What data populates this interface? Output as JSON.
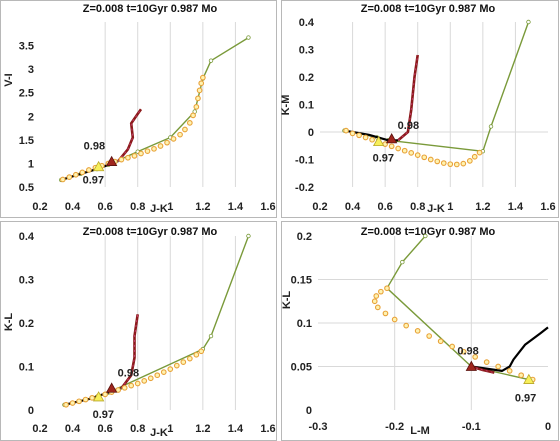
{
  "colors": {
    "track_green": "#7a9a3a",
    "track_dark": "#000000",
    "track_red": "#8b1a1a",
    "track_pink": "#c23b6a",
    "points_orange": "#e8a23a",
    "points_fill": "#fff3b0",
    "marker_red": "#a0261e",
    "marker_yellow": "#f7ef5a",
    "grid": "#d9d9d9"
  },
  "chart_data": [
    {
      "type": "line",
      "title": "Z=0.008  t=10Gyr 0.987 Mo",
      "xlabel": "J-K",
      "ylabel": "V-I",
      "xlim": [
        0.2,
        1.6
      ],
      "ylim": [
        0.5,
        4.0
      ],
      "xticks": [
        0.2,
        0.4,
        0.6,
        0.8,
        1,
        1.2,
        1.4,
        1.6
      ],
      "xtick_labels": [
        "0.2",
        "0.4",
        "0.6",
        "0.8",
        "1",
        "1.2",
        "1.4",
        "1.6"
      ],
      "yticks": [
        0.5,
        1,
        1.5,
        2,
        2.5,
        3,
        3.5
      ],
      "ytick_labels": [
        "0.5",
        "1",
        "1.5",
        "2",
        "2.5",
        "3",
        "3.5"
      ],
      "xgrid": [
        0.6,
        0.8,
        1.0,
        1.2,
        1.4
      ],
      "ygrid": [],
      "series": [
        {
          "kind": "green",
          "x": [
            0.33,
            0.45,
            0.55,
            0.62,
            0.8,
            1.0,
            1.15,
            1.2,
            1.25,
            1.48
          ],
          "y": [
            0.65,
            0.78,
            0.88,
            0.97,
            1.25,
            1.55,
            2.1,
            2.8,
            3.18,
            3.67
          ]
        },
        {
          "kind": "dark",
          "x": [
            0.33,
            0.45,
            0.55,
            0.62,
            0.68
          ],
          "y": [
            0.65,
            0.78,
            0.88,
            0.97,
            1.05
          ]
        },
        {
          "kind": "red",
          "x": [
            0.68,
            0.74,
            0.77,
            0.76,
            0.8,
            0.82
          ],
          "y": [
            1.05,
            1.3,
            1.55,
            1.85,
            2.05,
            2.15
          ]
        },
        {
          "kind": "points",
          "x": [
            0.34,
            0.38,
            0.42,
            0.46,
            0.5,
            0.54,
            0.58,
            0.62,
            0.66,
            0.7,
            0.74,
            0.78,
            0.82,
            0.86,
            0.9,
            0.94,
            0.98,
            1.02,
            1.06,
            1.09,
            1.12,
            1.14,
            1.16,
            1.17,
            1.18,
            1.19,
            1.2
          ],
          "y": [
            0.66,
            0.71,
            0.76,
            0.81,
            0.86,
            0.91,
            0.95,
            1.0,
            1.04,
            1.08,
            1.12,
            1.16,
            1.21,
            1.26,
            1.31,
            1.37,
            1.44,
            1.52,
            1.61,
            1.72,
            1.86,
            2.02,
            2.2,
            2.38,
            2.55,
            2.7,
            2.82
          ]
        }
      ],
      "markers": [
        {
          "label": "0.98",
          "x": 0.64,
          "y": 1.04,
          "shape": "red-triangle",
          "label_dx": -28,
          "label_dy": -12
        },
        {
          "label": "0.97",
          "x": 0.56,
          "y": 0.93,
          "shape": "yellow-triangle",
          "label_dx": -16,
          "label_dy": 17
        }
      ]
    },
    {
      "type": "line",
      "title": "Z=0.008  t=10Gyr 0.987 Mo",
      "xlabel": "J-K",
      "ylabel": "K-M",
      "xlim": [
        0.2,
        1.6
      ],
      "ylim": [
        -0.2,
        0.4
      ],
      "xticks": [
        0.2,
        0.4,
        0.6,
        0.8,
        1,
        1.2,
        1.4,
        1.6
      ],
      "xtick_labels": [
        "0.2",
        "0.4",
        "0.6",
        "0.8",
        "1",
        "1.2",
        "1.4",
        "1.6"
      ],
      "yticks": [
        -0.2,
        -0.1,
        0,
        0.1,
        0.2,
        0.3,
        0.4
      ],
      "ytick_labels": [
        "-0.2",
        "-0.1",
        "0",
        "0.1",
        "0.2",
        "0.3",
        "0.4"
      ],
      "xgrid": [
        0.4,
        0.6,
        0.8,
        1.0,
        1.2,
        1.4
      ],
      "ygrid": [
        0
      ],
      "series": [
        {
          "kind": "green",
          "x": [
            0.35,
            0.55,
            0.62,
            1.2,
            1.25,
            1.48
          ],
          "y": [
            0.005,
            -0.02,
            -0.03,
            -0.07,
            0.02,
            0.4
          ]
        },
        {
          "kind": "dark",
          "x": [
            0.35,
            0.5,
            0.62,
            0.68
          ],
          "y": [
            0.005,
            -0.01,
            -0.03,
            -0.03
          ]
        },
        {
          "kind": "red",
          "x": [
            0.68,
            0.74,
            0.76,
            0.78,
            0.8
          ],
          "y": [
            -0.03,
            0.0,
            0.08,
            0.2,
            0.28
          ]
        },
        {
          "kind": "points",
          "x": [
            0.36,
            0.4,
            0.44,
            0.48,
            0.52,
            0.56,
            0.6,
            0.64,
            0.68,
            0.72,
            0.76,
            0.8,
            0.84,
            0.88,
            0.92,
            0.96,
            1.0,
            1.04,
            1.08,
            1.12,
            1.15,
            1.18
          ],
          "y": [
            0.005,
            -0.005,
            -0.012,
            -0.02,
            -0.028,
            -0.036,
            -0.044,
            -0.052,
            -0.06,
            -0.068,
            -0.076,
            -0.084,
            -0.092,
            -0.1,
            -0.107,
            -0.113,
            -0.117,
            -0.118,
            -0.115,
            -0.105,
            -0.09,
            -0.075
          ]
        }
      ],
      "markers": [
        {
          "label": "0.98",
          "x": 0.64,
          "y": -0.025,
          "shape": "red-triangle",
          "label_dx": 6,
          "label_dy": -10
        },
        {
          "label": "0.97",
          "x": 0.56,
          "y": -0.035,
          "shape": "yellow-triangle",
          "label_dx": -6,
          "label_dy": 20
        }
      ]
    },
    {
      "type": "line",
      "title": "Z=0.008  t=10Gyr 0.987 Mo",
      "xlabel": "J-K",
      "ylabel": "K-L",
      "xlim": [
        0.2,
        1.6
      ],
      "ylim": [
        0,
        0.4
      ],
      "xticks": [
        0.2,
        0.4,
        0.6,
        0.8,
        1,
        1.2,
        1.4,
        1.6
      ],
      "xtick_labels": [
        "0.2",
        "0.4",
        "0.6",
        "0.8",
        "1",
        "1.2",
        "1.4",
        "1.6"
      ],
      "yticks": [
        0,
        0.1,
        0.2,
        0.3,
        0.4
      ],
      "ytick_labels": [
        "0",
        "0.1",
        "0.2",
        "0.3",
        "0.4"
      ],
      "xgrid": [
        0.6,
        0.8,
        1.0,
        1.2,
        1.4
      ],
      "ygrid": [],
      "series": [
        {
          "kind": "green",
          "x": [
            0.35,
            0.55,
            0.62,
            1.2,
            1.25,
            1.48
          ],
          "y": [
            0.012,
            0.03,
            0.04,
            0.14,
            0.17,
            0.4
          ]
        },
        {
          "kind": "dark",
          "x": [
            0.35,
            0.5,
            0.62,
            0.7
          ],
          "y": [
            0.012,
            0.025,
            0.04,
            0.05
          ]
        },
        {
          "kind": "red",
          "x": [
            0.7,
            0.76,
            0.78,
            0.78,
            0.8
          ],
          "y": [
            0.05,
            0.08,
            0.12,
            0.17,
            0.22
          ]
        },
        {
          "kind": "points",
          "x": [
            0.36,
            0.4,
            0.44,
            0.48,
            0.52,
            0.56,
            0.6,
            0.64,
            0.68,
            0.72,
            0.76,
            0.8,
            0.84,
            0.88,
            0.92,
            0.96,
            1.0,
            1.04,
            1.08,
            1.12,
            1.16,
            1.19
          ],
          "y": [
            0.012,
            0.016,
            0.02,
            0.024,
            0.028,
            0.032,
            0.036,
            0.041,
            0.046,
            0.051,
            0.056,
            0.061,
            0.067,
            0.073,
            0.08,
            0.087,
            0.094,
            0.102,
            0.11,
            0.118,
            0.127,
            0.135
          ]
        }
      ],
      "markers": [
        {
          "label": "0.98",
          "x": 0.64,
          "y": 0.05,
          "shape": "red-triangle",
          "label_dx": 6,
          "label_dy": -12
        },
        {
          "label": "0.97",
          "x": 0.56,
          "y": 0.03,
          "shape": "yellow-triangle",
          "label_dx": -6,
          "label_dy": 21
        }
      ]
    },
    {
      "type": "line",
      "title": "Z=0.008  t=10Gyr 0.987 Mo",
      "xlabel": "L-M",
      "ylabel": "K-L",
      "xlim": [
        -0.3,
        0
      ],
      "ylim": [
        0,
        0.2
      ],
      "xticks": [
        -0.3,
        -0.2,
        -0.1,
        0
      ],
      "xtick_labels": [
        "-0.3",
        "-0.2",
        "-0.1",
        "0"
      ],
      "yticks": [
        0,
        0.05,
        0.1,
        0.15,
        0.2
      ],
      "ytick_labels": [
        "0",
        "0.05",
        "0.1",
        "0.15",
        "0.2"
      ],
      "xgrid": [
        -0.2,
        -0.1
      ],
      "ygrid": [
        0.05,
        0.1,
        0.15
      ],
      "series": [
        {
          "kind": "green",
          "x": [
            -0.025,
            -0.1,
            -0.21,
            -0.19,
            -0.16
          ],
          "y": [
            0.035,
            0.05,
            0.14,
            0.17,
            0.2
          ]
        },
        {
          "kind": "dark",
          "x": [
            -0.1,
            -0.06,
            -0.05,
            -0.045,
            -0.03,
            -0.01,
            0.0
          ],
          "y": [
            0.05,
            0.045,
            0.05,
            0.058,
            0.075,
            0.088,
            0.095
          ]
        },
        {
          "kind": "red",
          "x": [
            -0.1,
            -0.085,
            -0.07
          ],
          "y": [
            0.05,
            0.046,
            0.043
          ]
        },
        {
          "kind": "points",
          "x": [
            -0.02,
            -0.035,
            -0.05,
            -0.065,
            -0.08,
            -0.095,
            -0.11,
            -0.125,
            -0.14,
            -0.155,
            -0.17,
            -0.185,
            -0.2,
            -0.212,
            -0.222,
            -0.226,
            -0.224,
            -0.218,
            -0.21
          ],
          "y": [
            0.035,
            0.04,
            0.045,
            0.05,
            0.055,
            0.061,
            0.067,
            0.073,
            0.079,
            0.085,
            0.091,
            0.097,
            0.104,
            0.111,
            0.118,
            0.125,
            0.131,
            0.136,
            0.14
          ]
        }
      ],
      "markers": [
        {
          "label": "0.98",
          "x": -0.1,
          "y": 0.05,
          "shape": "red-triangle",
          "label_dx": -14,
          "label_dy": -12
        },
        {
          "label": "0.97",
          "x": -0.025,
          "y": 0.035,
          "shape": "yellow-triangle",
          "label_dx": -14,
          "label_dy": 22
        }
      ]
    }
  ]
}
